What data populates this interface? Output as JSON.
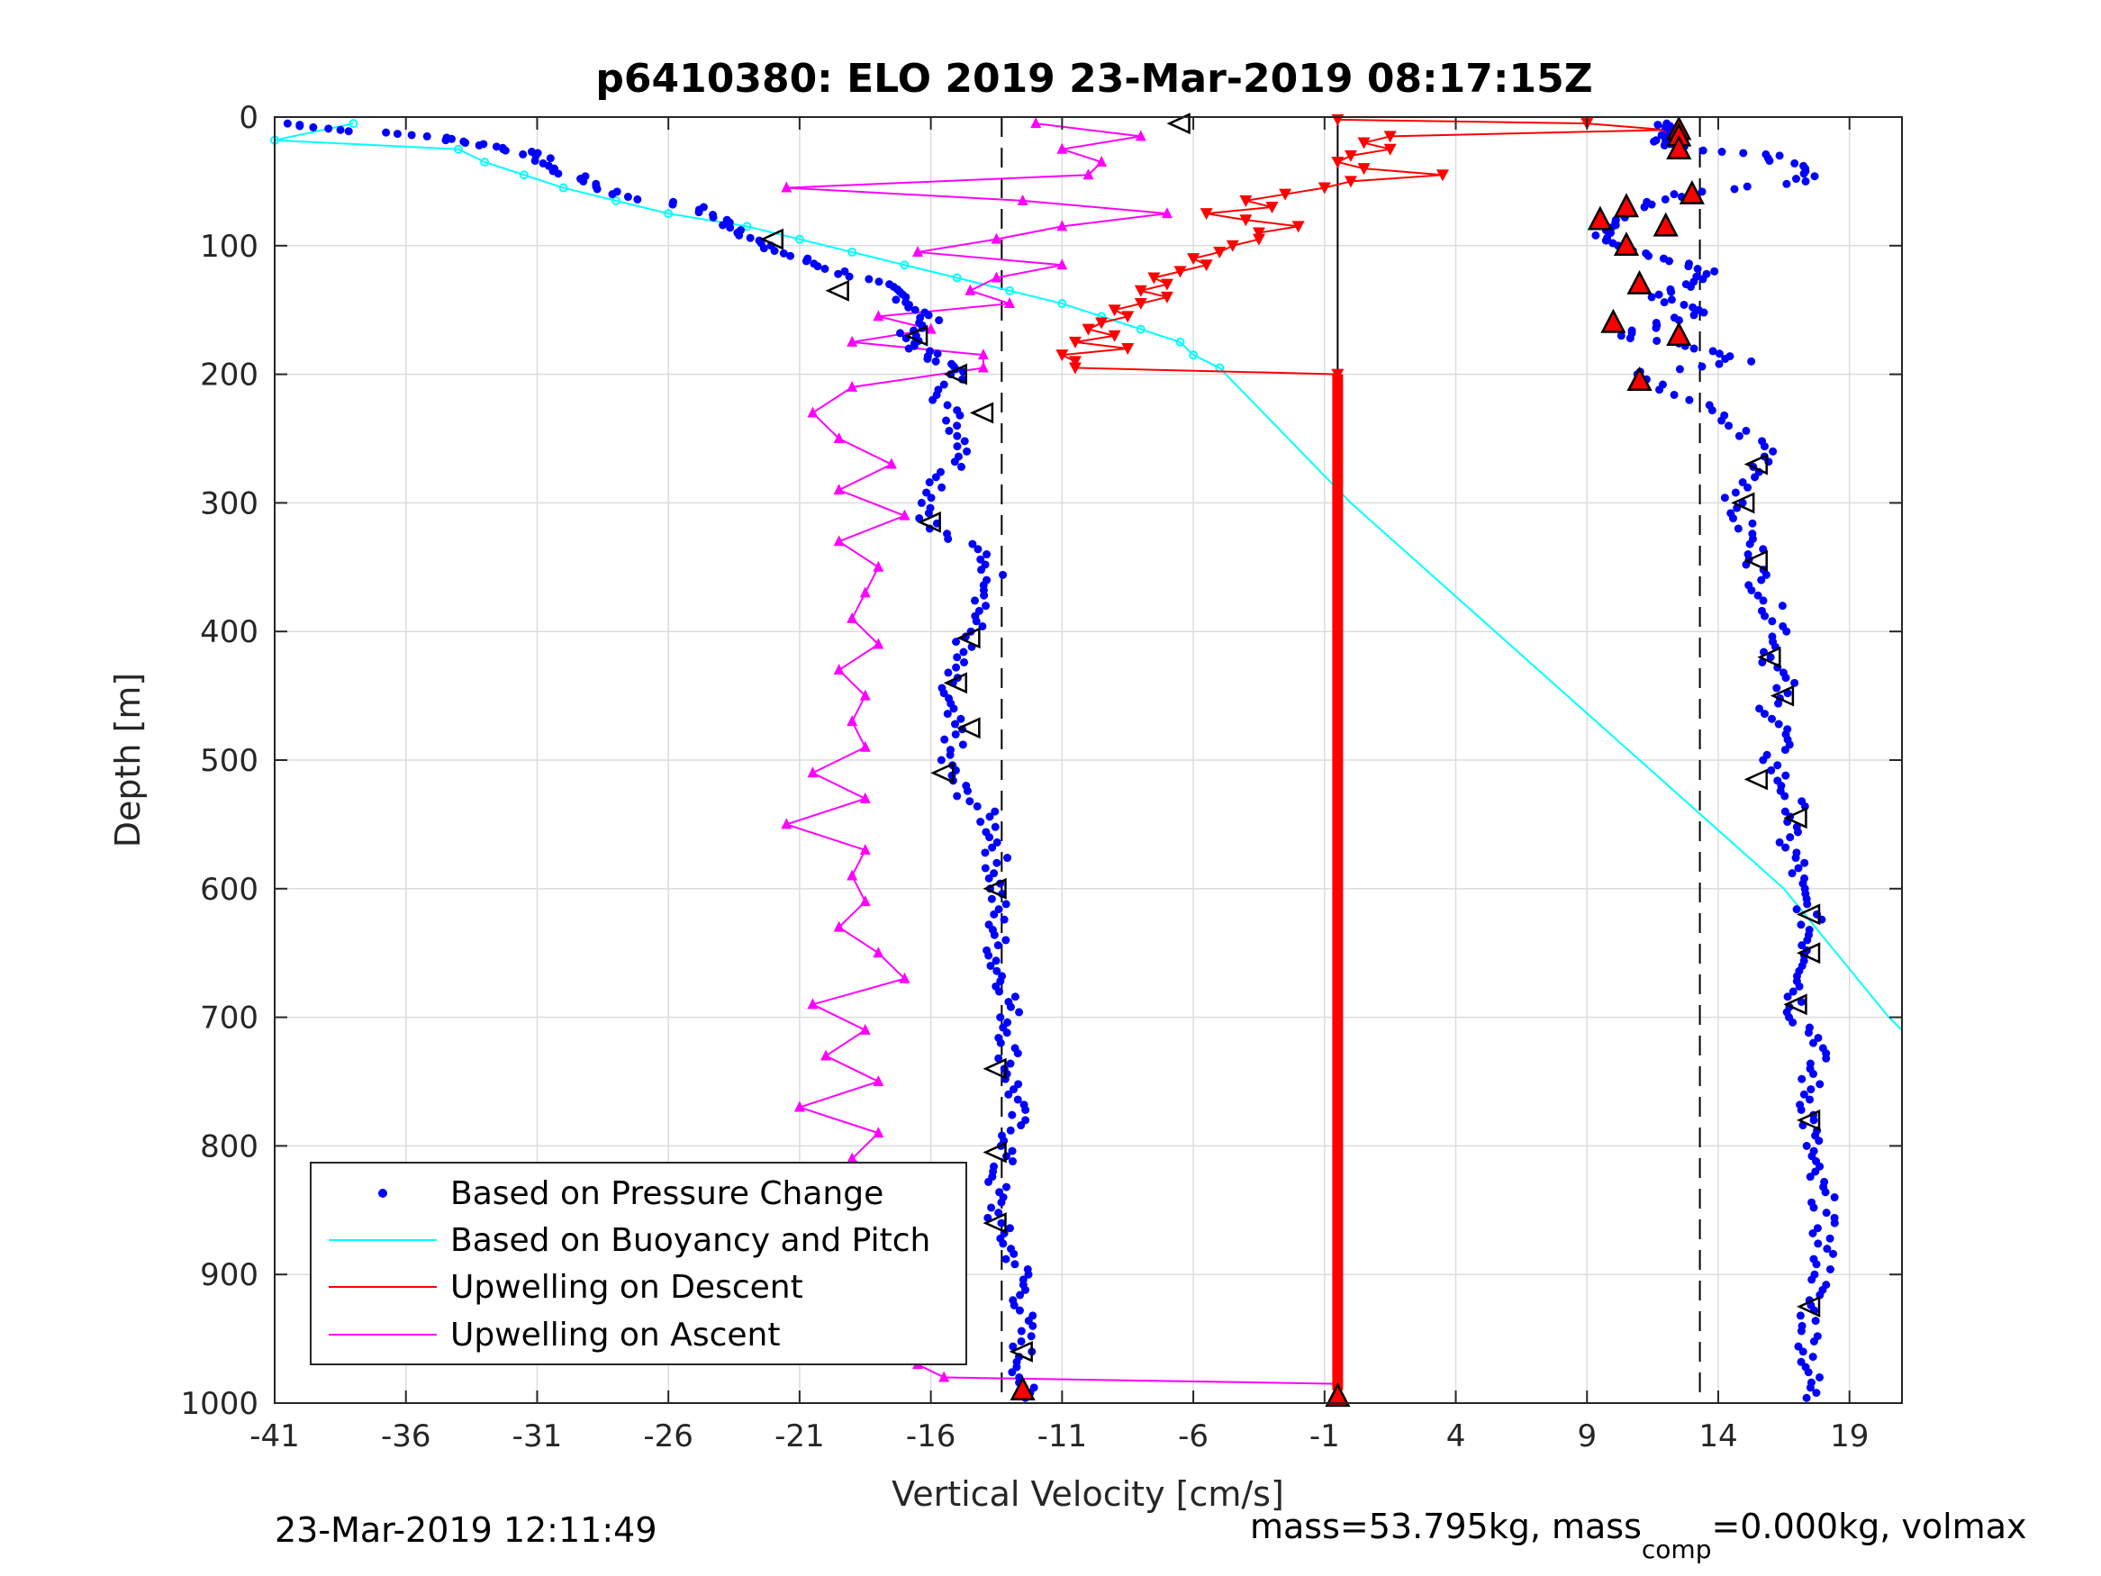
{
  "chart_data": {
    "type": "scatter",
    "title": "p6410380: ELO 2019 23-Mar-2019 08:17:15Z",
    "xlabel": "Vertical Velocity [cm/s]",
    "ylabel": "Depth [m]",
    "xlim": [
      -41,
      21
    ],
    "ylim": [
      0,
      1000
    ],
    "y_reversed": true,
    "grid": true,
    "xticks": [
      -41,
      -36,
      -31,
      -26,
      -21,
      -16,
      -11,
      -6,
      -1,
      4,
      9,
      14,
      19
    ],
    "yticks": [
      0,
      100,
      200,
      300,
      400,
      500,
      600,
      700,
      800,
      900,
      1000
    ],
    "legend_position": "bottom-left",
    "legend": [
      {
        "label": "Based on Pressure Change",
        "style": "dot",
        "color": "#0000ff"
      },
      {
        "label": "Based on Buoyancy and Pitch",
        "style": "line",
        "color": "#00ffff"
      },
      {
        "label": "Upwelling on Descent",
        "style": "line",
        "color": "#ff0000"
      },
      {
        "label": "Upwelling on Ascent",
        "style": "line",
        "color": "#ff00ff"
      }
    ],
    "reference_lines": {
      "dashed_x": [
        -13.3,
        13.3
      ],
      "solid_x": [
        -0.5
      ]
    },
    "series": [
      {
        "name": "Based on Pressure Change",
        "color": "#0000ff",
        "style": "dot",
        "depth": [
          5,
          10,
          15,
          20,
          25,
          30,
          40,
          50,
          60,
          70,
          80,
          90,
          100,
          110,
          120,
          130,
          140,
          150,
          160,
          170,
          180,
          190,
          200,
          220,
          240,
          260,
          280,
          300,
          320,
          340,
          360,
          380,
          400,
          420,
          440,
          460,
          480,
          500,
          520,
          540,
          560,
          580,
          600,
          620,
          640,
          660,
          680,
          700,
          720,
          740,
          760,
          780,
          800,
          820,
          840,
          860,
          880,
          900,
          920,
          940,
          960,
          980
        ],
        "descent_velocity": [
          -40.5,
          -38.5,
          -35,
          -33.5,
          -32,
          -31,
          -30.5,
          -29,
          -28,
          -25,
          -24,
          -23,
          -22.5,
          -21,
          -19.5,
          -18,
          -17,
          -16.5,
          -16,
          -17,
          -16.5,
          -15.5,
          -15,
          -15.5,
          -15,
          -14.5,
          -15.5,
          -16,
          -16,
          -14,
          -13.5,
          -14,
          -14.5,
          -15,
          -15.5,
          -15.5,
          -15,
          -15.5,
          -15,
          -14,
          -13.5,
          -13.5,
          -13.5,
          -13.5,
          -13.5,
          -13.5,
          -13,
          -13,
          -13,
          -13,
          -12.8,
          -12.8,
          -13,
          -13.5,
          -13.5,
          -13.5,
          -13,
          -12.5,
          -12.5,
          -12.5,
          -12.5,
          -12.5
        ],
        "ascent_velocity": [
          12,
          12.5,
          12,
          12,
          13,
          16,
          17,
          17.5,
          12.5,
          11,
          10.5,
          9.5,
          10.5,
          12,
          13.5,
          13,
          11.5,
          13.5,
          12,
          10.5,
          13.5,
          15,
          10.5,
          13,
          14.5,
          16,
          15.5,
          14.5,
          15,
          15.5,
          15.5,
          16,
          16.5,
          16,
          16.5,
          16,
          16.5,
          16,
          16.5,
          17,
          16.5,
          17,
          17,
          17.5,
          17.5,
          17.5,
          17,
          17,
          18,
          17.5,
          17.5,
          17.5,
          17.5,
          17.5,
          18,
          18,
          18,
          18,
          17.5,
          17.5,
          17.5,
          17.5
        ]
      },
      {
        "name": "Based on Buoyancy and Pitch",
        "color": "#00ffff",
        "style": "line",
        "depth": [
          5,
          18,
          25,
          35,
          45,
          55,
          65,
          75,
          85,
          95,
          105,
          115,
          125,
          135,
          145,
          155,
          165,
          175,
          185,
          195,
          300,
          400,
          500,
          600,
          700,
          710
        ],
        "velocity": [
          -38,
          -41,
          -34,
          -33,
          -31.5,
          -30,
          -28,
          -26,
          -23,
          -21,
          -19,
          -17,
          -15,
          -13,
          -11,
          -9.5,
          -8,
          -6.5,
          -6,
          -5,
          0,
          5.5,
          11,
          16.5,
          20.5,
          21
        ]
      },
      {
        "name": "Upwelling on Descent",
        "color": "#ff0000",
        "style": "line-marker",
        "depth": [
          2,
          5,
          10,
          15,
          20,
          25,
          30,
          35,
          40,
          45,
          50,
          55,
          60,
          65,
          70,
          75,
          80,
          85,
          90,
          95,
          100,
          105,
          110,
          115,
          120,
          125,
          130,
          135,
          140,
          145,
          150,
          155,
          160,
          165,
          170,
          175,
          180,
          185,
          190,
          195,
          200
        ],
        "velocity": [
          -0.5,
          9,
          12,
          1.5,
          0.5,
          1.5,
          0,
          -0.5,
          0.5,
          3.5,
          0,
          -1,
          -2.5,
          -4,
          -3,
          -5.5,
          -4,
          -2,
          -3.5,
          -3.5,
          -4.5,
          -5,
          -6,
          -5.5,
          -6.5,
          -7.5,
          -7,
          -8,
          -7,
          -8,
          -9,
          -8.5,
          -9.5,
          -10,
          -9,
          -10.5,
          -8.5,
          -11,
          -10.5,
          -10.5,
          -0.5
        ]
      },
      {
        "name": "Upwelling on Ascent",
        "color": "#ff00ff",
        "style": "line-marker",
        "depth": [
          5,
          15,
          25,
          35,
          45,
          55,
          65,
          75,
          85,
          95,
          105,
          115,
          125,
          135,
          145,
          155,
          165,
          175,
          185,
          195,
          210,
          230,
          250,
          270,
          290,
          310,
          330,
          350,
          370,
          390,
          410,
          430,
          450,
          470,
          490,
          510,
          530,
          550,
          570,
          590,
          610,
          630,
          650,
          670,
          690,
          710,
          730,
          750,
          770,
          790,
          810,
          830,
          850,
          870,
          890,
          910,
          930,
          950,
          970,
          980
        ],
        "velocity": [
          -12,
          -8,
          -11,
          -9.5,
          -10,
          -21.5,
          -12.5,
          -7,
          -11,
          -13.5,
          -16.5,
          -11,
          -13.5,
          -14.5,
          -13,
          -18,
          -16,
          -19,
          -14,
          -14,
          -19,
          -20.5,
          -19.5,
          -17.5,
          -19.5,
          -17,
          -19.5,
          -18,
          -18.5,
          -19,
          -18,
          -19.5,
          -18.5,
          -19,
          -18.5,
          -20.5,
          -18.5,
          -21.5,
          -18.5,
          -19,
          -18.5,
          -19.5,
          -18,
          -17,
          -20.5,
          -18.5,
          -20,
          -18,
          -21,
          -18,
          -19,
          -17.5,
          -17.5,
          -17,
          -16.5,
          -20.5,
          -17,
          -17,
          -16.5,
          -15.5
        ]
      }
    ],
    "ascent_markers_red_triangles": {
      "depth": [
        10,
        15,
        25,
        60,
        70,
        80,
        85,
        100,
        130,
        160,
        170,
        205,
        990
      ],
      "velocity": [
        12.5,
        12.5,
        12.5,
        13,
        10.5,
        9.5,
        12,
        10.5,
        11,
        10,
        12.5,
        11,
        -12.5
      ]
    },
    "open_triangle_markers": {
      "depth": [
        5,
        95,
        135,
        170,
        200,
        230,
        270,
        300,
        315,
        345,
        405,
        420,
        440,
        450,
        475,
        510,
        515,
        545,
        600,
        620,
        650,
        690,
        740,
        780,
        805,
        860,
        925,
        960
      ],
      "velocity": [
        -6.5,
        -22,
        -19.5,
        -16.5,
        -15,
        -14,
        15.5,
        15,
        -16,
        15.5,
        -14.5,
        16,
        -15,
        16.5,
        -14.5,
        -15.5,
        15.5,
        17,
        -13.5,
        17.5,
        17.5,
        17,
        -13.5,
        17.5,
        -13.5,
        -13.5,
        17.5,
        -12.5
      ]
    }
  },
  "footer": {
    "timestamp": "23-Mar-2019 12:11:49",
    "mass_prefix": "mass=53.795kg, mass",
    "mass_subscript": "comp",
    "mass_suffix": "=0.000kg, volmax"
  }
}
